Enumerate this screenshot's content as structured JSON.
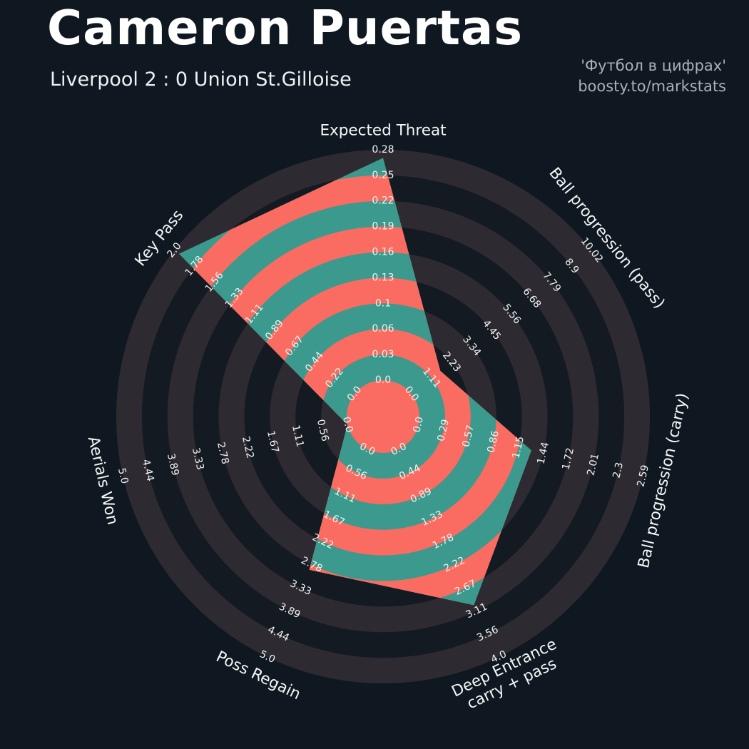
{
  "header": {
    "title": "Cameron Puertas",
    "subtitle": "Liverpool 2 : 0 Union St.Gilloise",
    "watermark_line1": "'Футбол в цифрах'",
    "watermark_line2": "boosty.to/markstats"
  },
  "chart_data": {
    "type": "radar",
    "title": "Cameron Puertas",
    "subtitle": "Liverpool 2 : 0 Union St.Gilloise",
    "grid": "concentric-rings",
    "legend_position": "none",
    "num_rings": 9,
    "axes": [
      {
        "label": "Expected Threat",
        "value": 0.27,
        "max": 0.28,
        "ticks": [
          "0.0",
          "0.03",
          "0.06",
          "0.1",
          "0.13",
          "0.16",
          "0.19",
          "0.22",
          "0.25",
          "0.28"
        ]
      },
      {
        "label": "Ball progression (pass)",
        "value": 1.6,
        "max": 10.02,
        "ticks": [
          "0.0",
          "1.11",
          "2.23",
          "3.34",
          "4.45",
          "5.56",
          "6.68",
          "7.79",
          "8.9",
          "10.02"
        ]
      },
      {
        "label": "Ball progression (carry)",
        "value": 1.3,
        "max": 2.59,
        "ticks": [
          "0.0",
          "0.29",
          "0.57",
          "0.86",
          "1.15",
          "1.44",
          "1.72",
          "2.01",
          "2.3",
          "2.59"
        ]
      },
      {
        "label": "Deep Entrance\ncarry + pass",
        "value": 3.0,
        "max": 4.0,
        "ticks": [
          "0.0",
          "0.44",
          "0.89",
          "1.33",
          "1.78",
          "2.22",
          "2.67",
          "3.11",
          "3.56",
          "4.0"
        ]
      },
      {
        "label": "Poss Regain",
        "value": 2.9,
        "max": 5.0,
        "ticks": [
          "0.0",
          "0.56",
          "1.11",
          "1.67",
          "2.22",
          "2.78",
          "3.33",
          "3.89",
          "4.44",
          "5.0"
        ]
      },
      {
        "label": "Aerials Won",
        "value": 0.0,
        "max": 5.0,
        "ticks": [
          "0.0",
          "0.56",
          "1.11",
          "1.67",
          "2.22",
          "2.78",
          "3.33",
          "3.89",
          "4.44",
          "5.0"
        ]
      },
      {
        "label": "Key Pass",
        "value": 1.95,
        "max": 2.0,
        "ticks": [
          "0.0",
          "0.22",
          "0.44",
          "0.67",
          "0.89",
          "1.11",
          "1.33",
          "1.56",
          "1.78",
          "2.0"
        ]
      }
    ],
    "colors": {
      "background": "#0f1821",
      "ring_dark": "#141a22",
      "ring_light": "#2e2a32",
      "fill_red": "#fa6c61",
      "fill_teal": "#3b9a8d",
      "tick_text": "#f1f2f2",
      "axis_text": "#f4f6f6",
      "title_text": "#ffffff",
      "subtitle_text": "#eef1f3",
      "watermark_text": "#a9b1b8"
    }
  }
}
